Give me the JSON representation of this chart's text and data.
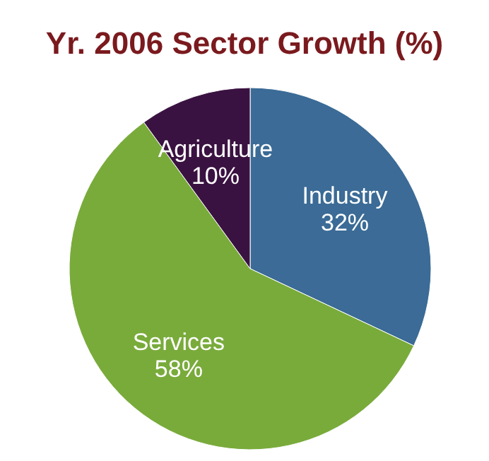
{
  "chart_data": {
    "type": "pie",
    "title": "Yr. 2006 Sector Growth (%)",
    "categories": [
      "Industry",
      "Services",
      "Agriculture"
    ],
    "values": [
      32,
      58,
      10
    ],
    "value_labels": [
      "32%",
      "58%",
      "10%"
    ],
    "colors": [
      "#3b6b96",
      "#79ab3b",
      "#3a1241"
    ],
    "legend": false
  }
}
